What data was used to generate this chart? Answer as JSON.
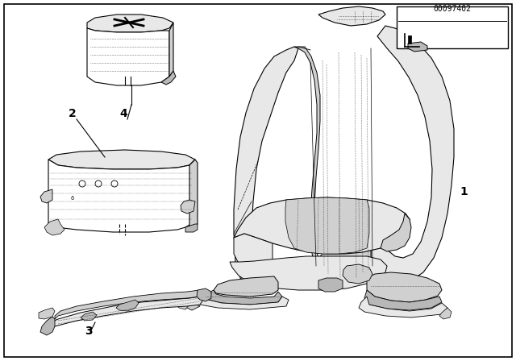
{
  "background_color": "#ffffff",
  "border_color": "#000000",
  "text_color": "#000000",
  "part_number_text": "00097402",
  "label_1": "1",
  "label_2": "2",
  "label_3": "3",
  "label_4": "4",
  "fig_width": 6.4,
  "fig_height": 4.48,
  "dpi": 100,
  "line_color": "#000000",
  "fill_light": "#e8e8e8",
  "fill_medium": "#d0d0d0",
  "fill_dark": "#b8b8b8",
  "fill_white": "#ffffff"
}
